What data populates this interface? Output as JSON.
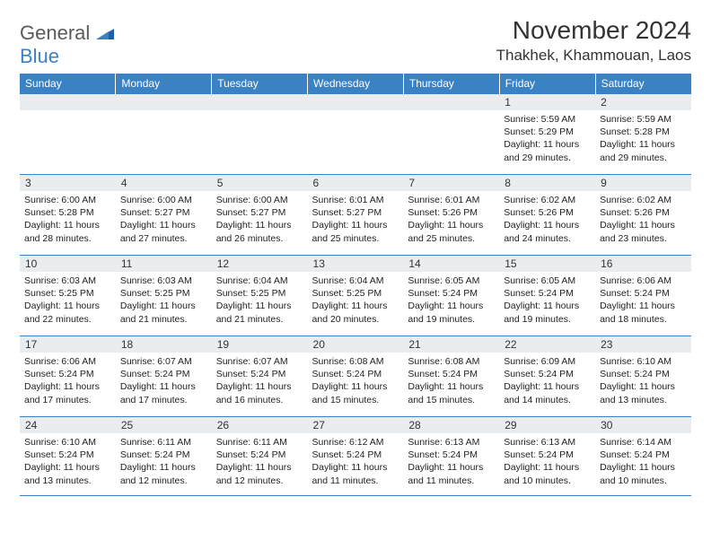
{
  "logo": {
    "word1": "General",
    "word2": "Blue"
  },
  "header": {
    "title": "November 2024",
    "location": "Thakhek, Khammouan, Laos"
  },
  "weekdays": [
    "Sunday",
    "Monday",
    "Tuesday",
    "Wednesday",
    "Thursday",
    "Friday",
    "Saturday"
  ],
  "colors": {
    "header_bg": "#3b82c4",
    "header_text": "#ffffff",
    "daynum_bg": "#e9edf0",
    "text": "#222222",
    "title": "#333333",
    "border": "#3b82c4"
  },
  "fonts": {
    "title_size_pt": 21,
    "location_size_pt": 13,
    "weekday_size_pt": 9,
    "daynum_size_pt": 9,
    "body_size_pt": 8
  },
  "weeks": [
    [
      null,
      null,
      null,
      null,
      null,
      {
        "n": "1",
        "sunrise": "Sunrise: 5:59 AM",
        "sunset": "Sunset: 5:29 PM",
        "day": "Daylight: 11 hours and 29 minutes."
      },
      {
        "n": "2",
        "sunrise": "Sunrise: 5:59 AM",
        "sunset": "Sunset: 5:28 PM",
        "day": "Daylight: 11 hours and 29 minutes."
      }
    ],
    [
      {
        "n": "3",
        "sunrise": "Sunrise: 6:00 AM",
        "sunset": "Sunset: 5:28 PM",
        "day": "Daylight: 11 hours and 28 minutes."
      },
      {
        "n": "4",
        "sunrise": "Sunrise: 6:00 AM",
        "sunset": "Sunset: 5:27 PM",
        "day": "Daylight: 11 hours and 27 minutes."
      },
      {
        "n": "5",
        "sunrise": "Sunrise: 6:00 AM",
        "sunset": "Sunset: 5:27 PM",
        "day": "Daylight: 11 hours and 26 minutes."
      },
      {
        "n": "6",
        "sunrise": "Sunrise: 6:01 AM",
        "sunset": "Sunset: 5:27 PM",
        "day": "Daylight: 11 hours and 25 minutes."
      },
      {
        "n": "7",
        "sunrise": "Sunrise: 6:01 AM",
        "sunset": "Sunset: 5:26 PM",
        "day": "Daylight: 11 hours and 25 minutes."
      },
      {
        "n": "8",
        "sunrise": "Sunrise: 6:02 AM",
        "sunset": "Sunset: 5:26 PM",
        "day": "Daylight: 11 hours and 24 minutes."
      },
      {
        "n": "9",
        "sunrise": "Sunrise: 6:02 AM",
        "sunset": "Sunset: 5:26 PM",
        "day": "Daylight: 11 hours and 23 minutes."
      }
    ],
    [
      {
        "n": "10",
        "sunrise": "Sunrise: 6:03 AM",
        "sunset": "Sunset: 5:25 PM",
        "day": "Daylight: 11 hours and 22 minutes."
      },
      {
        "n": "11",
        "sunrise": "Sunrise: 6:03 AM",
        "sunset": "Sunset: 5:25 PM",
        "day": "Daylight: 11 hours and 21 minutes."
      },
      {
        "n": "12",
        "sunrise": "Sunrise: 6:04 AM",
        "sunset": "Sunset: 5:25 PM",
        "day": "Daylight: 11 hours and 21 minutes."
      },
      {
        "n": "13",
        "sunrise": "Sunrise: 6:04 AM",
        "sunset": "Sunset: 5:25 PM",
        "day": "Daylight: 11 hours and 20 minutes."
      },
      {
        "n": "14",
        "sunrise": "Sunrise: 6:05 AM",
        "sunset": "Sunset: 5:24 PM",
        "day": "Daylight: 11 hours and 19 minutes."
      },
      {
        "n": "15",
        "sunrise": "Sunrise: 6:05 AM",
        "sunset": "Sunset: 5:24 PM",
        "day": "Daylight: 11 hours and 19 minutes."
      },
      {
        "n": "16",
        "sunrise": "Sunrise: 6:06 AM",
        "sunset": "Sunset: 5:24 PM",
        "day": "Daylight: 11 hours and 18 minutes."
      }
    ],
    [
      {
        "n": "17",
        "sunrise": "Sunrise: 6:06 AM",
        "sunset": "Sunset: 5:24 PM",
        "day": "Daylight: 11 hours and 17 minutes."
      },
      {
        "n": "18",
        "sunrise": "Sunrise: 6:07 AM",
        "sunset": "Sunset: 5:24 PM",
        "day": "Daylight: 11 hours and 17 minutes."
      },
      {
        "n": "19",
        "sunrise": "Sunrise: 6:07 AM",
        "sunset": "Sunset: 5:24 PM",
        "day": "Daylight: 11 hours and 16 minutes."
      },
      {
        "n": "20",
        "sunrise": "Sunrise: 6:08 AM",
        "sunset": "Sunset: 5:24 PM",
        "day": "Daylight: 11 hours and 15 minutes."
      },
      {
        "n": "21",
        "sunrise": "Sunrise: 6:08 AM",
        "sunset": "Sunset: 5:24 PM",
        "day": "Daylight: 11 hours and 15 minutes."
      },
      {
        "n": "22",
        "sunrise": "Sunrise: 6:09 AM",
        "sunset": "Sunset: 5:24 PM",
        "day": "Daylight: 11 hours and 14 minutes."
      },
      {
        "n": "23",
        "sunrise": "Sunrise: 6:10 AM",
        "sunset": "Sunset: 5:24 PM",
        "day": "Daylight: 11 hours and 13 minutes."
      }
    ],
    [
      {
        "n": "24",
        "sunrise": "Sunrise: 6:10 AM",
        "sunset": "Sunset: 5:24 PM",
        "day": "Daylight: 11 hours and 13 minutes."
      },
      {
        "n": "25",
        "sunrise": "Sunrise: 6:11 AM",
        "sunset": "Sunset: 5:24 PM",
        "day": "Daylight: 11 hours and 12 minutes."
      },
      {
        "n": "26",
        "sunrise": "Sunrise: 6:11 AM",
        "sunset": "Sunset: 5:24 PM",
        "day": "Daylight: 11 hours and 12 minutes."
      },
      {
        "n": "27",
        "sunrise": "Sunrise: 6:12 AM",
        "sunset": "Sunset: 5:24 PM",
        "day": "Daylight: 11 hours and 11 minutes."
      },
      {
        "n": "28",
        "sunrise": "Sunrise: 6:13 AM",
        "sunset": "Sunset: 5:24 PM",
        "day": "Daylight: 11 hours and 11 minutes."
      },
      {
        "n": "29",
        "sunrise": "Sunrise: 6:13 AM",
        "sunset": "Sunset: 5:24 PM",
        "day": "Daylight: 11 hours and 10 minutes."
      },
      {
        "n": "30",
        "sunrise": "Sunrise: 6:14 AM",
        "sunset": "Sunset: 5:24 PM",
        "day": "Daylight: 11 hours and 10 minutes."
      }
    ]
  ]
}
